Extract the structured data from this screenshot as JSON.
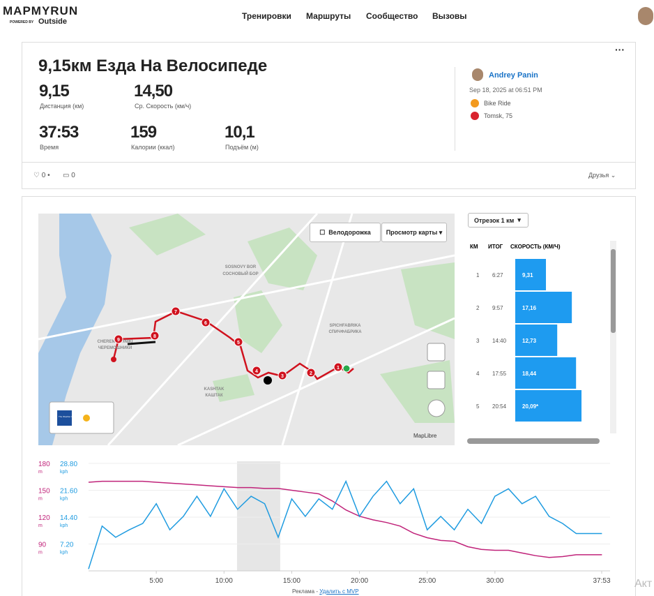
{
  "header": {
    "logo": "MAPMYRUN",
    "powered": "POWERED BY",
    "brand": "Outside",
    "nav": [
      "Тренировки",
      "Маршруты",
      "Сообщество",
      "Вызовы"
    ]
  },
  "workout": {
    "title": "9,15км Езда На Велосипеде",
    "stats": [
      {
        "value": "9,15",
        "label": "Дистанция (км)"
      },
      {
        "value": "14,50",
        "label": "Ср. Скорость (км/ч)"
      },
      {
        "value": "37:53",
        "label": "Время"
      },
      {
        "value": "159",
        "label": "Калории (ккал)"
      },
      {
        "value": "10,1",
        "label": "Подъём (м)"
      }
    ],
    "user": "Andrey Panin",
    "date": "Sep 18, 2025 at 06:51 PM",
    "activity": "Bike Ride",
    "location": "Tomsk, 75",
    "likes": "0",
    "comments": "0",
    "privacy": "Друзья"
  },
  "map": {
    "bike_lane": "Велодорожка",
    "map_view": "Просмотр карты",
    "places": [
      "SOSNOVY BOR",
      "СОСНОВЫЙ БОР",
      "CHEREMOSHNIKI",
      "ЧЕРЕМОШНИКИ",
      "KASHTAK",
      "КАШТАК",
      "SPICHFABRIKA",
      "СПИЧФАБРИКА"
    ],
    "markers": [
      "1",
      "2",
      "3",
      "4",
      "5",
      "6",
      "7",
      "8",
      "9"
    ],
    "weather": "The Weather Channel",
    "credit": "MapLibre"
  },
  "splits": {
    "selector": "Отрезок 1 км",
    "headers": [
      "КМ",
      "ИТОГ",
      "СКОРОСТЬ (КМ/Ч)"
    ],
    "rows": [
      {
        "km": "1",
        "total": "6:27",
        "speed": 9.31,
        "speed_label": "9,31"
      },
      {
        "km": "2",
        "total": "9:57",
        "speed": 17.16,
        "speed_label": "17,16"
      },
      {
        "km": "3",
        "total": "14:40",
        "speed": 12.73,
        "speed_label": "12,73"
      },
      {
        "km": "4",
        "total": "17:55",
        "speed": 18.44,
        "speed_label": "18,44"
      },
      {
        "km": "5",
        "total": "20:54",
        "speed": 20.09,
        "speed_label": "20,09*"
      }
    ]
  },
  "chart_data": {
    "type": "line",
    "x": [
      0,
      1,
      2,
      3,
      4,
      5,
      6,
      7,
      8,
      9,
      10,
      11,
      12,
      13,
      14,
      15,
      16,
      17,
      18,
      19,
      20,
      21,
      22,
      23,
      24,
      25,
      26,
      27,
      28,
      29,
      30,
      31,
      32,
      33,
      34,
      35,
      36,
      37,
      37.9
    ],
    "xlim": [
      0,
      38.5
    ],
    "xticks": [
      {
        "value": 5,
        "label": "5:00"
      },
      {
        "value": 10,
        "label": "10:00"
      },
      {
        "value": 15,
        "label": "15:00"
      },
      {
        "value": 20,
        "label": "20:00"
      },
      {
        "value": 25,
        "label": "25:00"
      },
      {
        "value": 30,
        "label": "30:00"
      },
      {
        "value": 37.883,
        "label": "37:53"
      }
    ],
    "ylim": [
      60,
      180
    ],
    "yticks": [
      90,
      120,
      150,
      180
    ],
    "y_unit": "m",
    "y2lim": [
      0,
      28.8
    ],
    "y2ticks": [
      {
        "value": 7.2,
        "label": "7.20"
      },
      {
        "value": 14.4,
        "label": "14.40"
      },
      {
        "value": 21.6,
        "label": "21.60"
      },
      {
        "value": 28.8,
        "label": "28.80"
      }
    ],
    "y2_unit": "kph",
    "highlight": [
      10.96,
      14.15
    ],
    "grid": true,
    "series": [
      {
        "color": "#c0237a",
        "axis": "y",
        "values": [
          159,
          160,
          160,
          160,
          160,
          159,
          158,
          157,
          156,
          155,
          154,
          153,
          153,
          152,
          152,
          150,
          148,
          146,
          138,
          128,
          121,
          117,
          114,
          110,
          102,
          97,
          94,
          93,
          87,
          84,
          83,
          83,
          80,
          77,
          75,
          76,
          78,
          78,
          78
        ]
      },
      {
        "color": "#1e9be0",
        "axis": "y2",
        "values": [
          0.5,
          12,
          9,
          11,
          12.7,
          18,
          11,
          14.6,
          20,
          14.6,
          22,
          16.5,
          20,
          18,
          9,
          19.3,
          14.6,
          19.3,
          16.5,
          24,
          14.6,
          20,
          24,
          18,
          22,
          11,
          14.6,
          11,
          16.5,
          12.7,
          20,
          22,
          18,
          20,
          14.6,
          12.7,
          10,
          10,
          10
        ]
      }
    ]
  },
  "footer": {
    "ad": "Реклама - ",
    "remove": "Удалить с MVP",
    "cut": "Акт"
  }
}
